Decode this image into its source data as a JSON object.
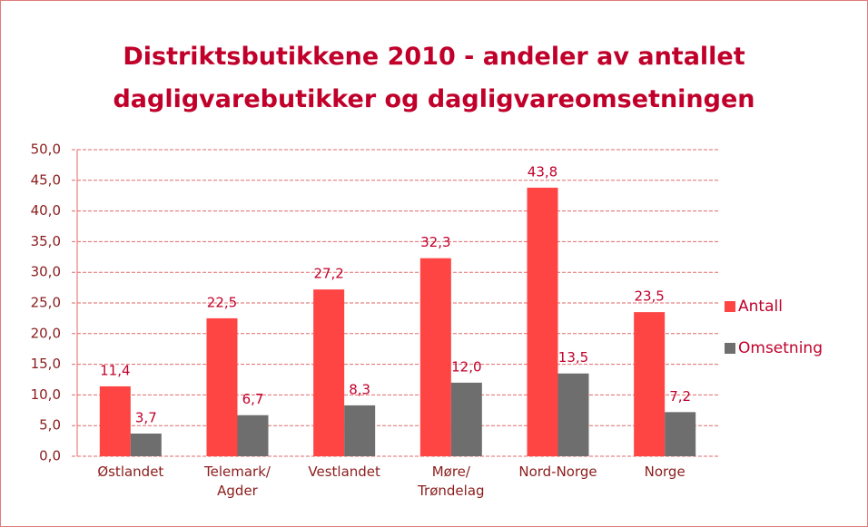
{
  "chart_data": {
    "type": "bar",
    "title": "Distriktsbutikkene 2010 - andeler av antallet\ndagligvarebutikker og dagligvareomsetningen",
    "categories": [
      "Østlandet",
      "Telemark/\nAgder",
      "Vestlandet",
      "Møre/\nTrøndelag",
      "Nord-Norge",
      "Norge"
    ],
    "series": [
      {
        "name": "Antall",
        "color": "#ff4444",
        "values": [
          11.4,
          22.5,
          27.2,
          32.3,
          43.8,
          23.5
        ],
        "value_labels": [
          "11,4",
          "22,5",
          "27,2",
          "32,3",
          "43,8",
          "23,5"
        ]
      },
      {
        "name": "Omsetning",
        "color": "#6e6e6e",
        "values": [
          3.7,
          6.7,
          8.3,
          12.0,
          13.5,
          7.2
        ],
        "value_labels": [
          "3,7",
          "6,7",
          "8,3",
          "12,0",
          "13,5",
          "7,2"
        ]
      }
    ],
    "ylim": [
      0,
      50
    ],
    "yticks": [
      {
        "value": 0,
        "label": "0,0"
      },
      {
        "value": 5,
        "label": "5,0"
      },
      {
        "value": 10,
        "label": "10,0"
      },
      {
        "value": 15,
        "label": "15,0"
      },
      {
        "value": 20,
        "label": "20,0"
      },
      {
        "value": 25,
        "label": "25,0"
      },
      {
        "value": 30,
        "label": "30,0"
      },
      {
        "value": 35,
        "label": "35,0"
      },
      {
        "value": 40,
        "label": "40,0"
      },
      {
        "value": 45,
        "label": "45,0"
      },
      {
        "value": 50,
        "label": "50,0"
      }
    ],
    "grid": true,
    "legend": "right"
  }
}
